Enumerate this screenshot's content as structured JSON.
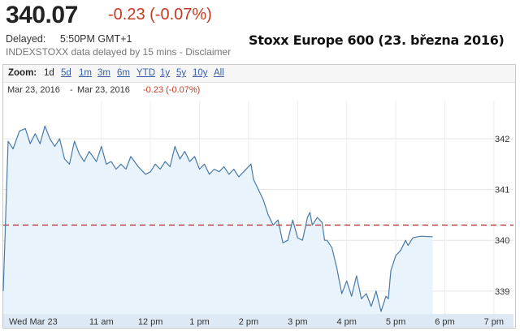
{
  "header": {
    "price": "340.07",
    "change": "-0.23 (-0.07%)",
    "delayed_label": "Delayed:",
    "delayed_time": "5:50PM GMT+1",
    "source_note": "INDEXSTOXX data delayed by 15 mins - Disclaimer",
    "caption": "Stoxx Europe 600 (23. března 2016)"
  },
  "colors": {
    "negative": "#c23b22",
    "line": "#4a7aa8",
    "fill": "#e8f3fc",
    "axis_band": "#dde9f5",
    "link": "#3a5ea8"
  },
  "zoom": {
    "label": "Zoom:",
    "options": [
      "1d",
      "5d",
      "1m",
      "3m",
      "6m",
      "YTD",
      "1y",
      "5y",
      "10y",
      "All"
    ],
    "active": "1d"
  },
  "range": {
    "from": "Mar 23, 2016",
    "separator": "-",
    "to": "Mar 23, 2016",
    "change": "-0.23 (-0.07%)"
  },
  "chart_data": {
    "type": "area",
    "x_tick_labels": [
      "Wed Mar 23",
      "11 am",
      "12 pm",
      "1 pm",
      "2 pm",
      "3 pm",
      "4 pm",
      "5 pm",
      "6 pm",
      "7 pm"
    ],
    "x_hours": [
      9,
      11,
      12,
      13,
      14,
      15,
      16,
      17,
      18,
      19
    ],
    "xlim": [
      9,
      19.4
    ],
    "y_tick_labels": [
      "342",
      "341",
      "340",
      "339"
    ],
    "y_ticks": [
      342,
      341,
      340,
      339
    ],
    "ylim": [
      338.55,
      342.75
    ],
    "previous_close": 340.3,
    "series": [
      {
        "x": [
          9.0,
          9.1,
          9.2,
          9.33,
          9.45,
          9.55,
          9.65,
          9.75,
          9.85,
          9.95,
          10.05,
          10.15,
          10.25,
          10.35,
          10.45,
          10.55,
          10.65,
          10.75,
          10.9,
          11.0,
          11.1,
          11.2,
          11.3,
          11.4,
          11.5,
          11.6,
          11.75,
          11.9,
          12.0,
          12.1,
          12.2,
          12.3,
          12.4,
          12.5,
          12.6,
          12.7,
          12.8,
          12.9,
          13.0,
          13.1,
          13.2,
          13.3,
          13.4,
          13.5,
          13.6,
          13.7,
          13.8,
          13.9,
          14.0,
          14.05,
          14.1,
          14.2,
          14.3,
          14.4,
          14.5,
          14.6,
          14.7,
          14.8,
          14.9,
          15.0,
          15.1,
          15.2,
          15.25,
          15.3,
          15.4,
          15.5,
          15.55,
          15.6,
          15.7,
          15.8,
          15.9,
          16.0,
          16.1,
          16.2,
          16.3,
          16.4,
          16.5,
          16.6,
          16.7,
          16.8,
          16.85,
          16.9,
          17.0,
          17.1,
          17.2,
          17.25,
          17.35,
          17.5,
          17.75
        ],
        "y": [
          339.0,
          341.95,
          341.8,
          342.15,
          342.2,
          341.9,
          342.1,
          341.9,
          342.25,
          342.0,
          341.85,
          342.0,
          341.6,
          341.5,
          341.95,
          341.7,
          341.55,
          341.75,
          341.55,
          341.85,
          341.5,
          341.55,
          341.4,
          341.5,
          341.4,
          341.65,
          341.45,
          341.3,
          341.35,
          341.5,
          341.4,
          341.55,
          341.45,
          341.85,
          341.6,
          341.75,
          341.55,
          341.65,
          341.4,
          341.5,
          341.3,
          341.4,
          341.35,
          341.45,
          341.3,
          341.4,
          341.25,
          341.35,
          341.45,
          341.5,
          341.2,
          341.0,
          340.8,
          340.5,
          340.3,
          340.4,
          339.95,
          340.0,
          340.4,
          340.05,
          340.0,
          340.45,
          340.55,
          340.3,
          340.45,
          340.35,
          340.0,
          340.0,
          339.85,
          339.45,
          338.95,
          339.2,
          338.9,
          339.3,
          338.85,
          338.95,
          338.7,
          339.0,
          338.6,
          338.9,
          338.85,
          339.4,
          339.7,
          339.8,
          340.0,
          339.9,
          340.05,
          340.08,
          340.07
        ]
      }
    ],
    "grid": true,
    "fill_under_line": true
  }
}
